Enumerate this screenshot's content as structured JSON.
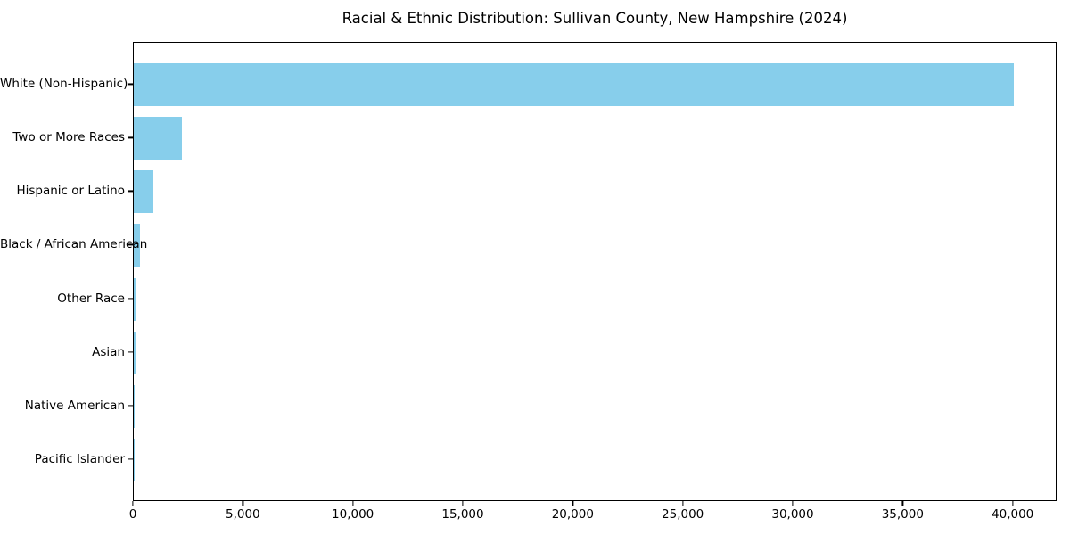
{
  "chart_data": {
    "type": "bar",
    "orientation": "horizontal",
    "title": "Racial & Ethnic Distribution: Sullivan County, New Hampshire (2024)",
    "categories": [
      "White (Non-Hispanic)",
      "Two or More Races",
      "Hispanic or Latino",
      "Black / African American",
      "Other Race",
      "Asian",
      "Native American",
      "Pacific Islander"
    ],
    "values": [
      40000,
      2200,
      900,
      270,
      130,
      115,
      30,
      10
    ],
    "xlabel": "",
    "ylabel": "",
    "xlim": [
      0,
      42000
    ],
    "xticks": {
      "values": [
        0,
        5000,
        10000,
        15000,
        20000,
        25000,
        30000,
        35000,
        40000
      ],
      "labels": [
        "0",
        "5,000",
        "10,000",
        "15,000",
        "20,000",
        "25,000",
        "30,000",
        "35,000",
        "40,000"
      ]
    },
    "grid": false,
    "legend": null,
    "colors": {
      "bar": "#87CEEB",
      "spine": "#000000",
      "text": "#000000",
      "background": "#FFFFFF"
    }
  }
}
